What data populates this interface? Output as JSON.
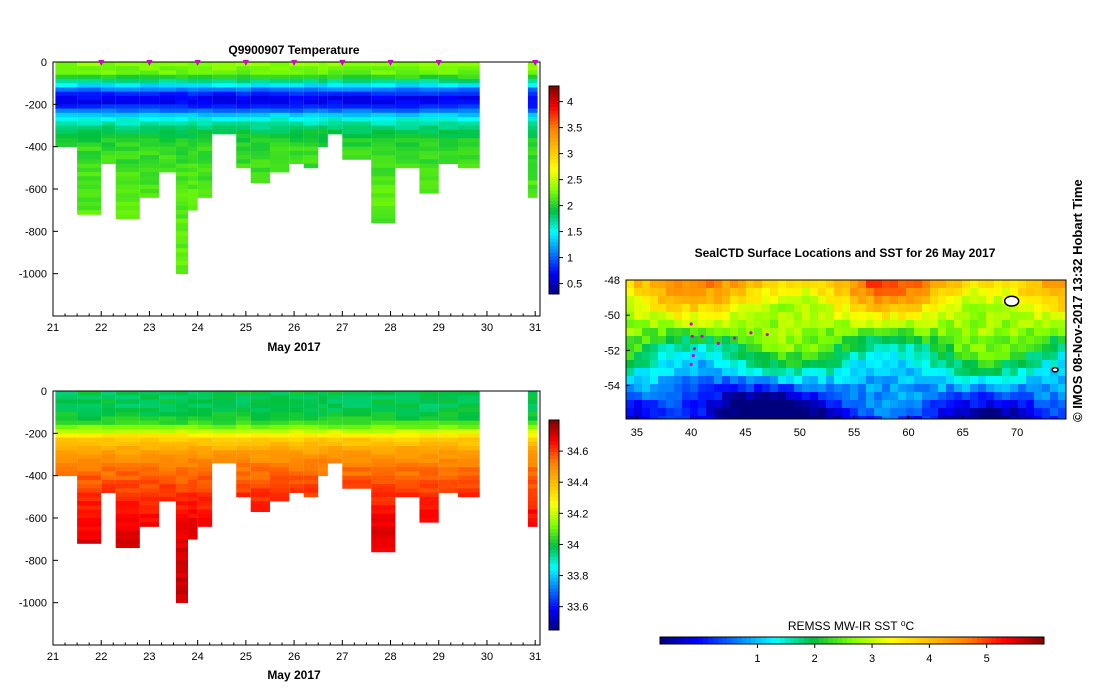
{
  "colors": {
    "panel_bg": "#ffffff",
    "profile_marker": "#d400d4",
    "track": "#d400d4",
    "cmap": [
      "#00007f",
      "#0000ff",
      "#007fff",
      "#00ffff",
      "#00c040",
      "#7fff00",
      "#ffff00",
      "#ffbf00",
      "#ff7f00",
      "#ff0000",
      "#7f0000"
    ]
  },
  "chart_data": [
    {
      "type": "heatmap",
      "title": "Q9900907  Temperature",
      "xlabel": "May 2017",
      "ylabel": "",
      "xlim": [
        21,
        31.1
      ],
      "ylim": [
        -1200,
        0
      ],
      "xticks": [
        "21",
        "22",
        "23",
        "24",
        "25",
        "26",
        "27",
        "28",
        "29",
        "30",
        "31"
      ],
      "yticks": [
        "0",
        "-200",
        "-400",
        "-600",
        "-800",
        "-1000"
      ],
      "profile_markers_x": [
        22,
        23,
        24,
        25,
        26,
        27,
        28,
        29,
        31
      ],
      "colorbar": {
        "min": 0.3,
        "max": 4.3,
        "ticks": [
          "0.5",
          "1",
          "1.5",
          "2",
          "2.5",
          "3",
          "3.5",
          "4"
        ]
      },
      "profiles": [
        {
          "x0": 21.05,
          "x1": 21.5,
          "depth": 400
        },
        {
          "x0": 21.5,
          "x1": 22.0,
          "depth": 720
        },
        {
          "x0": 22.0,
          "x1": 22.3,
          "depth": 480
        },
        {
          "x0": 22.3,
          "x1": 22.8,
          "depth": 740
        },
        {
          "x0": 22.8,
          "x1": 23.2,
          "depth": 640
        },
        {
          "x0": 23.2,
          "x1": 23.55,
          "depth": 520
        },
        {
          "x0": 23.55,
          "x1": 23.8,
          "depth": 1000
        },
        {
          "x0": 23.8,
          "x1": 24.0,
          "depth": 700
        },
        {
          "x0": 24.0,
          "x1": 24.3,
          "depth": 640
        },
        {
          "x0": 24.3,
          "x1": 24.8,
          "depth": 340
        },
        {
          "x0": 24.8,
          "x1": 25.1,
          "depth": 500
        },
        {
          "x0": 25.1,
          "x1": 25.5,
          "depth": 570
        },
        {
          "x0": 25.5,
          "x1": 25.9,
          "depth": 520
        },
        {
          "x0": 25.9,
          "x1": 26.2,
          "depth": 480
        },
        {
          "x0": 26.2,
          "x1": 26.5,
          "depth": 500
        },
        {
          "x0": 26.5,
          "x1": 26.7,
          "depth": 400
        },
        {
          "x0": 26.7,
          "x1": 27.0,
          "depth": 340
        },
        {
          "x0": 27.0,
          "x1": 27.6,
          "depth": 460
        },
        {
          "x0": 27.6,
          "x1": 28.1,
          "depth": 760
        },
        {
          "x0": 28.1,
          "x1": 28.6,
          "depth": 500
        },
        {
          "x0": 28.6,
          "x1": 29.0,
          "depth": 620
        },
        {
          "x0": 29.0,
          "x1": 29.4,
          "depth": 480
        },
        {
          "x0": 29.4,
          "x1": 29.85,
          "depth": 500
        },
        {
          "x0": 30.85,
          "x1": 31.05,
          "depth": 640
        }
      ],
      "value_profile": {
        "depths": [
          0,
          60,
          100,
          140,
          180,
          220,
          260,
          320,
          400,
          600,
          1000
        ],
        "values": [
          2.35,
          2.2,
          1.6,
          0.9,
          0.6,
          0.9,
          1.5,
          1.85,
          2.05,
          2.15,
          2.2
        ]
      }
    },
    {
      "type": "heatmap",
      "title": "",
      "xlabel": "May 2017",
      "ylabel": "",
      "xlim": [
        21,
        31.1
      ],
      "ylim": [
        -1200,
        0
      ],
      "xticks": [
        "21",
        "22",
        "23",
        "24",
        "25",
        "26",
        "27",
        "28",
        "29",
        "30",
        "31"
      ],
      "yticks": [
        "0",
        "-200",
        "-400",
        "-600",
        "-800",
        "-1000"
      ],
      "colorbar": {
        "min": 33.45,
        "max": 34.8,
        "ticks": [
          "33.6",
          "33.8",
          "34",
          "34.2",
          "34.4",
          "34.6"
        ]
      },
      "value_profile": {
        "depths": [
          0,
          80,
          140,
          180,
          220,
          280,
          340,
          420,
          500,
          600,
          700,
          1000
        ],
        "values": [
          33.98,
          33.98,
          34.02,
          34.15,
          34.35,
          34.45,
          34.52,
          34.57,
          34.62,
          34.66,
          34.69,
          34.72
        ]
      }
    },
    {
      "type": "heatmap",
      "title": "SealCTD Surface Locations and SST for 26 May 2017",
      "xlabel": "",
      "ylabel": "",
      "xlim": [
        34,
        74.5
      ],
      "ylim": [
        -55.9,
        -48
      ],
      "xticks": [
        "35",
        "40",
        "45",
        "50",
        "55",
        "60",
        "65",
        "70"
      ],
      "yticks": [
        "-48",
        "-50",
        "-52",
        "-54"
      ],
      "colorbar": {
        "label": "REMSS MW-IR SST ⁰C",
        "min": -0.7,
        "max": 6.0,
        "ticks": [
          "1",
          "2",
          "3",
          "4",
          "5"
        ]
      },
      "track_points": [
        {
          "lon": 40.0,
          "lat": -52.8
        },
        {
          "lon": 40.2,
          "lat": -52.3
        },
        {
          "lon": 40.3,
          "lat": -51.9
        },
        {
          "lon": 40.1,
          "lat": -51.2
        },
        {
          "lon": 40.0,
          "lat": -50.5
        },
        {
          "lon": 41.0,
          "lat": -51.2
        },
        {
          "lon": 42.5,
          "lat": -51.6
        },
        {
          "lon": 44.0,
          "lat": -51.3
        },
        {
          "lon": 45.5,
          "lat": -51.0
        },
        {
          "lon": 47.0,
          "lat": -51.1
        }
      ]
    }
  ],
  "side_text": "©  IMOS 08-Nov-2017 13:32 Hobart Time"
}
